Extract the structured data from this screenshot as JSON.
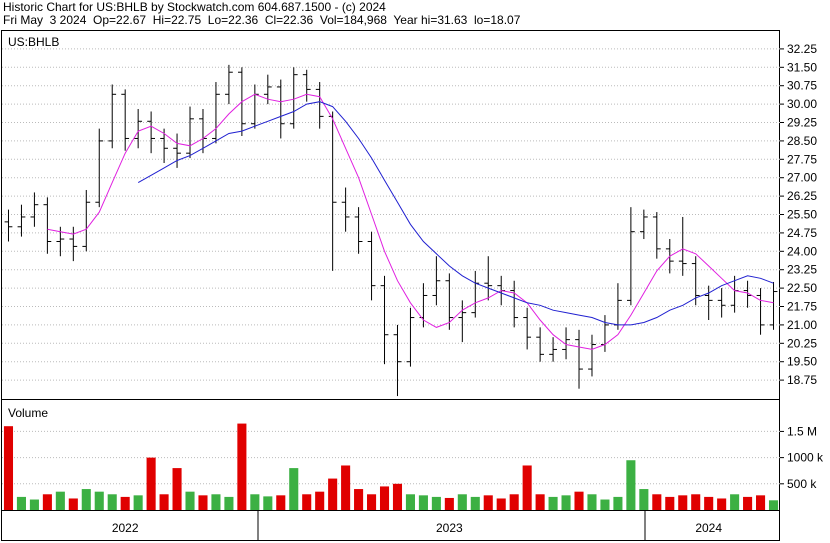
{
  "chart_data": [
    {
      "type": "ohlc",
      "title": "Historic Chart for US:BHLB by Stockwatch.com 604.687.1500 - (c) 2024",
      "subtitle": "Fri May  3 2024  Op=22.67  Hi=22.75  Lo=22.36  Cl=22.36  Vol=184,968  Year hi=31.63  lo=18.07",
      "panel_label": "US:BHLB",
      "categories": [
        null,
        null,
        null,
        null,
        null,
        null,
        null,
        null,
        null,
        "2022",
        null,
        null,
        null,
        null,
        null,
        null,
        null,
        null,
        null,
        null,
        null,
        null,
        null,
        null,
        null,
        null,
        null,
        null,
        null,
        null,
        null,
        null,
        null,
        null,
        "2023",
        null,
        null,
        null,
        null,
        null,
        null,
        null,
        null,
        null,
        null,
        null,
        null,
        null,
        null,
        null,
        null,
        null,
        null,
        null,
        "2024",
        null,
        null,
        null,
        null,
        null
      ],
      "open": [
        25.2,
        25.0,
        25.4,
        25.9,
        24.4,
        24.5,
        24.2,
        26.0,
        28.5,
        30.4,
        28.6,
        29.3,
        28.6,
        28.2,
        28.0,
        29.4,
        28.6,
        30.4,
        31.3,
        29.2,
        30.4,
        30.7,
        29.2,
        31.2,
        30.6,
        29.5,
        26.0,
        25.4,
        24.4,
        22.6,
        20.6,
        19.5,
        21.3,
        22.2,
        22.8,
        21.3,
        21.5,
        22.7,
        22.6,
        22.4,
        21.3,
        20.5,
        19.8,
        20.0,
        20.4,
        19.2,
        20.2,
        21.0,
        22.0,
        24.8,
        25.4,
        24.1,
        23.6,
        23.5,
        22.2,
        22.0,
        21.8,
        22.4,
        22.2,
        21.0
      ],
      "high": [
        25.7,
        25.9,
        26.4,
        26.2,
        25.0,
        25.0,
        26.5,
        29.0,
        30.8,
        30.6,
        29.8,
        29.7,
        29.0,
        28.8,
        29.9,
        29.8,
        30.9,
        31.6,
        31.5,
        30.8,
        31.2,
        31.0,
        31.5,
        31.4,
        30.9,
        29.7,
        26.6,
        25.8,
        24.8,
        23.0,
        21.0,
        21.7,
        22.7,
        23.8,
        23.1,
        22.0,
        23.2,
        23.8,
        23.0,
        22.8,
        21.7,
        20.9,
        20.5,
        20.9,
        20.8,
        20.6,
        21.4,
        22.7,
        25.8,
        25.7,
        25.6,
        24.5,
        25.4,
        23.8,
        22.6,
        22.5,
        23.0,
        22.8,
        22.5,
        22.75
      ],
      "low": [
        24.4,
        24.6,
        25.0,
        23.9,
        23.8,
        23.6,
        24.0,
        25.8,
        28.2,
        28.1,
        28.2,
        28.0,
        27.6,
        27.4,
        27.8,
        28.0,
        28.4,
        30.0,
        28.7,
        29.0,
        30.0,
        28.6,
        29.0,
        30.1,
        29.0,
        23.2,
        24.8,
        23.9,
        22.0,
        19.4,
        18.1,
        19.3,
        20.9,
        21.8,
        20.8,
        20.3,
        21.3,
        22.0,
        21.8,
        20.9,
        20.0,
        19.5,
        19.5,
        19.6,
        18.4,
        18.9,
        19.9,
        20.8,
        21.8,
        24.5,
        23.7,
        23.1,
        23.0,
        21.8,
        21.2,
        21.3,
        21.5,
        21.7,
        20.6,
        20.8
      ],
      "close": [
        25.0,
        25.4,
        25.9,
        24.4,
        24.5,
        24.2,
        26.0,
        28.5,
        30.4,
        28.6,
        29.3,
        28.6,
        28.2,
        28.0,
        29.4,
        28.6,
        30.4,
        31.3,
        29.2,
        30.4,
        30.7,
        29.2,
        31.2,
        30.6,
        29.5,
        26.0,
        25.4,
        24.4,
        22.6,
        20.6,
        19.5,
        21.3,
        22.2,
        22.8,
        21.3,
        21.5,
        22.7,
        22.6,
        22.4,
        21.3,
        20.5,
        19.8,
        20.0,
        20.4,
        19.2,
        20.2,
        21.0,
        22.0,
        24.8,
        25.4,
        24.1,
        23.6,
        23.5,
        22.2,
        22.0,
        21.8,
        22.4,
        22.2,
        21.0,
        22.36
      ],
      "color": "#000000",
      "series": [
        {
          "color": "#e020e0",
          "values": [
            null,
            null,
            null,
            24.9,
            24.8,
            24.7,
            24.9,
            25.6,
            26.8,
            28.0,
            28.9,
            29.1,
            28.8,
            28.4,
            28.3,
            28.6,
            29.0,
            29.6,
            30.1,
            30.4,
            30.2,
            30.1,
            30.2,
            30.4,
            30.3,
            29.4,
            28.2,
            27.0,
            25.5,
            24.0,
            22.8,
            21.9,
            21.2,
            20.9,
            21.1,
            21.6,
            21.9,
            22.1,
            22.4,
            22.3,
            21.9,
            21.2,
            20.6,
            20.2,
            20.1,
            20.0,
            20.2,
            20.6,
            21.4,
            22.3,
            23.2,
            23.8,
            24.1,
            23.9,
            23.4,
            22.9,
            22.4,
            22.3,
            22.0,
            21.9
          ]
        },
        {
          "color": "#2020d0",
          "values": [
            null,
            null,
            null,
            null,
            null,
            null,
            null,
            null,
            null,
            null,
            26.8,
            27.1,
            27.4,
            27.7,
            27.9,
            28.2,
            28.5,
            28.8,
            28.9,
            29.1,
            29.3,
            29.5,
            29.7,
            30.0,
            30.1,
            29.9,
            29.3,
            28.6,
            27.8,
            26.9,
            26.0,
            25.1,
            24.4,
            23.9,
            23.4,
            23.0,
            22.7,
            22.5,
            22.3,
            22.1,
            21.9,
            21.8,
            21.6,
            21.5,
            21.4,
            21.3,
            21.1,
            21.0,
            21.0,
            21.1,
            21.3,
            21.6,
            21.8,
            22.1,
            22.3,
            22.6,
            22.8,
            23.0,
            22.9,
            22.7
          ]
        }
      ],
      "ylim": [
        17.98,
        32.98
      ],
      "yticks": [
        18.75,
        {
          "value": 19.5,
          "label": "19.50"
        },
        20.25,
        {
          "value": 21,
          "label": "21.00"
        },
        21.75,
        {
          "value": 22.5,
          "label": "22.50"
        },
        23.25,
        {
          "value": 24,
          "label": "24.00"
        },
        24.75,
        {
          "value": 25.5,
          "label": "25.50"
        },
        26.25,
        {
          "value": 27,
          "label": "27.00"
        },
        27.75,
        {
          "value": 28.5,
          "label": "28.50"
        },
        29.25,
        {
          "value": 30,
          "label": "30.00"
        },
        30.75,
        {
          "value": 31.5,
          "label": "31.50"
        },
        32.25
      ],
      "grid": true
    },
    {
      "type": "bar",
      "panel_label": "Volume",
      "values": [
        1600000,
        250000,
        200000,
        300000,
        350000,
        220000,
        400000,
        350000,
        300000,
        250000,
        280000,
        1000000,
        300000,
        800000,
        350000,
        280000,
        300000,
        250000,
        1650000,
        300000,
        260000,
        280000,
        800000,
        300000,
        350000,
        600000,
        850000,
        400000,
        300000,
        450000,
        500000,
        300000,
        280000,
        250000,
        230000,
        300000,
        250000,
        280000,
        220000,
        300000,
        850000,
        300000,
        250000,
        280000,
        350000,
        300000,
        200000,
        250000,
        950000,
        400000,
        300000,
        250000,
        280000,
        300000,
        250000,
        220000,
        300000,
        250000,
        280000,
        184968
      ],
      "up_color": "#3cb043",
      "down_color": "#e00000",
      "ylim": [
        0,
        2100000
      ],
      "yticks": [
        {
          "value": 500000,
          "label": "500 k"
        },
        {
          "value": 1000000,
          "label": "1000 k"
        },
        {
          "value": 1500000,
          "label": "1.5 M"
        }
      ],
      "grid": true
    }
  ]
}
